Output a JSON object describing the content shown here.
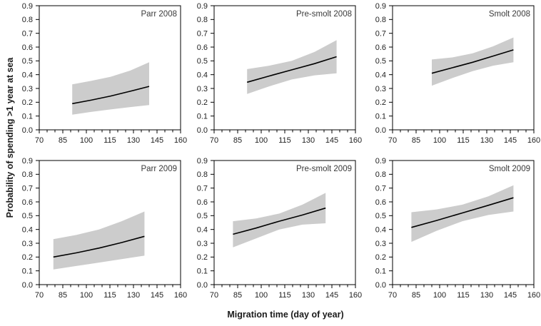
{
  "chart_data": {
    "type": "line",
    "layout": {
      "rows": 2,
      "cols": 3,
      "grid": false,
      "legend": "none"
    },
    "xlabel": "Migration time (day of year)",
    "ylabel": "Probability of spending >1 year at sea",
    "xlim": [
      70,
      160
    ],
    "ylim": [
      0,
      0.9
    ],
    "xticks_major": [
      70,
      85,
      100,
      115,
      130,
      145,
      160
    ],
    "xtick_minor_step": 5,
    "yticks": [
      "0.0",
      "0.1",
      "0.2",
      "0.3",
      "0.4",
      "0.5",
      "0.6",
      "0.7",
      "0.8",
      "0.9"
    ],
    "band_color": "#cccccc",
    "line_color": "#000000",
    "frame_color": "#000000",
    "tick_label_color": "#222222",
    "title_color": "#3a3a3a",
    "panels": [
      {
        "title": "Parr 2008",
        "x": [
          91,
          103,
          115.5,
          128,
          140
        ],
        "line": [
          0.19,
          0.215,
          0.245,
          0.28,
          0.315
        ],
        "upper": [
          0.33,
          0.355,
          0.385,
          0.43,
          0.49
        ],
        "lower": [
          0.11,
          0.13,
          0.148,
          0.165,
          0.18
        ]
      },
      {
        "title": "Pre-smolt 2008",
        "x": [
          91,
          105,
          119.5,
          134,
          148
        ],
        "line": [
          0.345,
          0.39,
          0.435,
          0.48,
          0.53
        ],
        "upper": [
          0.44,
          0.465,
          0.5,
          0.565,
          0.65
        ],
        "lower": [
          0.26,
          0.315,
          0.365,
          0.395,
          0.41
        ]
      },
      {
        "title": "Smolt 2008",
        "x": [
          95,
          108,
          121,
          134,
          147
        ],
        "line": [
          0.41,
          0.45,
          0.49,
          0.535,
          0.58
        ],
        "upper": [
          0.51,
          0.525,
          0.555,
          0.605,
          0.67
        ],
        "lower": [
          0.32,
          0.375,
          0.425,
          0.465,
          0.49
        ]
      },
      {
        "title": "Parr 2009",
        "x": [
          79,
          93.5,
          108,
          122.5,
          137
        ],
        "line": [
          0.2,
          0.23,
          0.265,
          0.305,
          0.35
        ],
        "upper": [
          0.33,
          0.36,
          0.4,
          0.46,
          0.53
        ],
        "lower": [
          0.11,
          0.135,
          0.16,
          0.185,
          0.21
        ]
      },
      {
        "title": "Pre-smolt 2009",
        "x": [
          82,
          96.75,
          111.5,
          126.25,
          141
        ],
        "line": [
          0.365,
          0.41,
          0.46,
          0.505,
          0.555
        ],
        "upper": [
          0.46,
          0.48,
          0.515,
          0.58,
          0.665
        ],
        "lower": [
          0.27,
          0.335,
          0.4,
          0.435,
          0.445
        ]
      },
      {
        "title": "Smolt 2009",
        "x": [
          82,
          98,
          114.5,
          131,
          147
        ],
        "line": [
          0.415,
          0.465,
          0.52,
          0.575,
          0.63
        ],
        "upper": [
          0.525,
          0.545,
          0.58,
          0.64,
          0.72
        ],
        "lower": [
          0.31,
          0.39,
          0.46,
          0.505,
          0.53
        ]
      }
    ]
  }
}
